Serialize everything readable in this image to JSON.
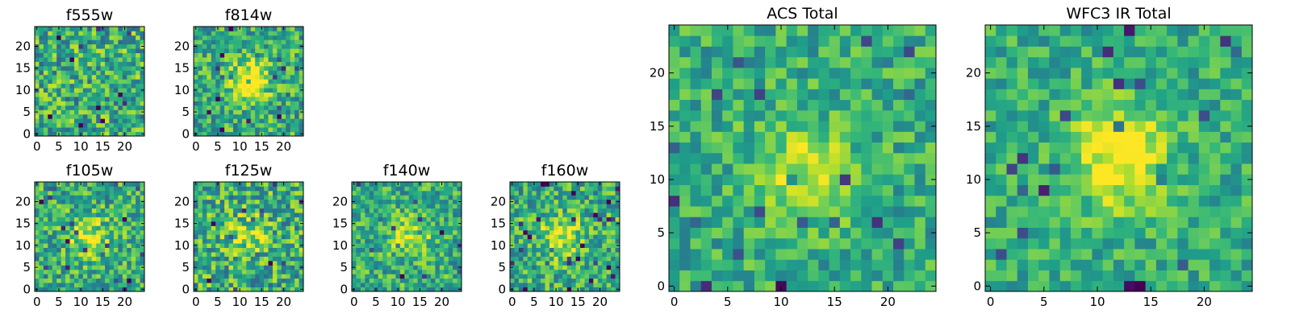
{
  "chart_data": [
    {
      "type": "heatmap",
      "title": "f555w",
      "grid_size": 25,
      "x_ticks": [
        0,
        5,
        10,
        15,
        20
      ],
      "y_ticks": [
        0,
        5,
        10,
        15,
        20
      ],
      "xlim": [
        -0.5,
        24.5
      ],
      "ylim": [
        -0.5,
        24.5
      ],
      "colormap": "viridis",
      "source_peak": [
        12,
        12
      ],
      "source_strength": 0.0,
      "noise": 0.3,
      "seed": 11
    },
    {
      "type": "heatmap",
      "title": "f814w",
      "grid_size": 25,
      "x_ticks": [
        0,
        5,
        10,
        15,
        20
      ],
      "y_ticks": [
        0,
        5,
        10,
        15,
        20
      ],
      "xlim": [
        -0.5,
        24.5
      ],
      "ylim": [
        -0.5,
        24.5
      ],
      "colormap": "viridis",
      "source_peak": [
        12,
        12
      ],
      "source_strength": 0.5,
      "noise": 0.26,
      "seed": 23
    },
    {
      "type": "heatmap",
      "title": "f105w",
      "grid_size": 25,
      "x_ticks": [
        0,
        5,
        10,
        15,
        20
      ],
      "y_ticks": [
        0,
        5,
        10,
        15,
        20
      ],
      "xlim": [
        -0.5,
        24.5
      ],
      "ylim": [
        -0.5,
        24.5
      ],
      "colormap": "viridis",
      "source_peak": [
        12,
        12
      ],
      "source_strength": 0.3,
      "noise": 0.26,
      "seed": 37
    },
    {
      "type": "heatmap",
      "title": "f125w",
      "grid_size": 25,
      "x_ticks": [
        0,
        5,
        10,
        15,
        20
      ],
      "y_ticks": [
        0,
        5,
        10,
        15,
        20
      ],
      "xlim": [
        -0.5,
        24.5
      ],
      "ylim": [
        -0.5,
        24.5
      ],
      "colormap": "viridis",
      "source_peak": [
        12,
        12
      ],
      "source_strength": 0.25,
      "noise": 0.3,
      "seed": 41
    },
    {
      "type": "heatmap",
      "title": "f140w",
      "grid_size": 25,
      "x_ticks": [
        0,
        5,
        10,
        15,
        20
      ],
      "y_ticks": [
        0,
        5,
        10,
        15,
        20
      ],
      "xlim": [
        -0.5,
        24.5
      ],
      "ylim": [
        -0.5,
        24.5
      ],
      "colormap": "viridis",
      "source_peak": [
        13,
        12
      ],
      "source_strength": 0.3,
      "noise": 0.24,
      "seed": 53
    },
    {
      "type": "heatmap",
      "title": "f160w",
      "grid_size": 25,
      "x_ticks": [
        0,
        5,
        10,
        15,
        20
      ],
      "y_ticks": [
        0,
        5,
        10,
        15,
        20
      ],
      "xlim": [
        -0.5,
        24.5
      ],
      "ylim": [
        -0.5,
        24.5
      ],
      "colormap": "viridis",
      "source_peak": [
        11,
        12
      ],
      "source_strength": 0.35,
      "noise": 0.26,
      "seed": 67
    },
    {
      "type": "heatmap",
      "title": "ACS Total",
      "grid_size": 25,
      "x_ticks": [
        0,
        5,
        10,
        15,
        20
      ],
      "y_ticks": [
        0,
        5,
        10,
        15,
        20
      ],
      "xlim": [
        -0.5,
        24.5
      ],
      "ylim": [
        -0.5,
        24.5
      ],
      "colormap": "viridis",
      "source_peak": [
        12,
        11
      ],
      "source_strength": 0.3,
      "noise": 0.2,
      "seed": 79
    },
    {
      "type": "heatmap",
      "title": "WFC3 IR Total",
      "grid_size": 25,
      "x_ticks": [
        0,
        5,
        10,
        15,
        20
      ],
      "y_ticks": [
        0,
        5,
        10,
        15,
        20
      ],
      "xlim": [
        -0.5,
        24.5
      ],
      "ylim": [
        -0.5,
        24.5
      ],
      "colormap": "viridis",
      "source_peak": [
        12,
        12
      ],
      "source_strength": 0.45,
      "noise": 0.18,
      "seed": 97
    }
  ]
}
